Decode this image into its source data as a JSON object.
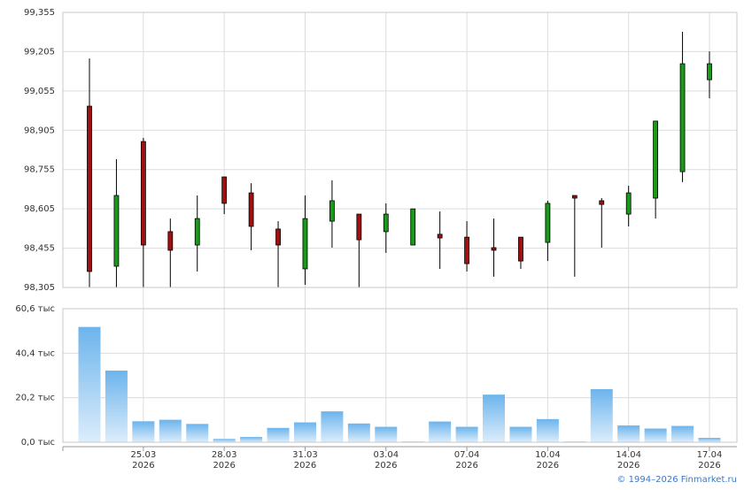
{
  "chart_data": [
    {
      "type": "candlestick",
      "up_color": "#1a9a1a",
      "down_color": "#a01010",
      "open": [
        98.997,
        98.386,
        98.862,
        98.518,
        98.467,
        98.727,
        98.666,
        98.528,
        98.376,
        98.558,
        98.585,
        98.518,
        98.467,
        98.508,
        98.497,
        98.457,
        98.497,
        98.477,
        98.656,
        98.636,
        98.585,
        98.646,
        98.747,
        99.098
      ],
      "high": [
        99.179,
        98.795,
        98.876,
        98.568,
        98.656,
        98.727,
        98.703,
        98.558,
        98.656,
        98.714,
        98.585,
        98.626,
        98.605,
        98.595,
        98.558,
        98.568,
        98.497,
        98.636,
        98.656,
        98.646,
        98.693,
        98.94,
        99.281,
        99.206
      ],
      "low": [
        98.305,
        98.305,
        98.305,
        98.305,
        98.366,
        98.585,
        98.447,
        98.305,
        98.315,
        98.457,
        98.305,
        98.437,
        98.467,
        98.376,
        98.366,
        98.346,
        98.376,
        98.406,
        98.346,
        98.457,
        98.538,
        98.568,
        98.707,
        99.027
      ],
      "close": [
        98.366,
        98.656,
        98.467,
        98.447,
        98.568,
        98.626,
        98.538,
        98.467,
        98.568,
        98.636,
        98.487,
        98.585,
        98.605,
        98.494,
        98.396,
        98.447,
        98.406,
        98.626,
        98.646,
        98.622,
        98.666,
        98.94,
        99.159,
        99.159
      ],
      "ylim": [
        98.305,
        99.355
      ],
      "yticks": [
        {
          "value": 98.305,
          "label": "98,305"
        },
        {
          "value": 98.455,
          "label": "98,455"
        },
        {
          "value": 98.605,
          "label": "98,605"
        },
        {
          "value": 98.755,
          "label": "98,755"
        },
        {
          "value": 98.905,
          "label": "98,905"
        },
        {
          "value": 99.055,
          "label": "99,055"
        },
        {
          "value": 99.205,
          "label": "99,205"
        },
        {
          "value": 99.355,
          "label": "99,355"
        }
      ],
      "grid": true
    },
    {
      "type": "bar",
      "color_top": "#6cb4ec",
      "color_bottom": "#dcedfb",
      "categories": [
        null,
        null,
        "25.03",
        null,
        null,
        "28.03",
        null,
        null,
        "31.03",
        null,
        null,
        "03.04",
        null,
        null,
        "07.04",
        null,
        null,
        "10.04",
        null,
        null,
        "14.04",
        null,
        null,
        "17.04"
      ],
      "category_sublabels": [
        null,
        null,
        "2026",
        null,
        null,
        "2026",
        null,
        null,
        "2026",
        null,
        null,
        "2026",
        null,
        null,
        "2026",
        null,
        null,
        "2026",
        null,
        null,
        "2026",
        null,
        null,
        "2026"
      ],
      "values": [
        52.3,
        32.5,
        9.5,
        10.2,
        8.3,
        1.5,
        2.4,
        6.5,
        9.0,
        14.0,
        8.5,
        7.0,
        0.3,
        9.4,
        7.0,
        21.6,
        7.0,
        10.5,
        0.3,
        24.1,
        7.6,
        6.2,
        7.4,
        2.0
      ],
      "ylim": [
        0,
        60.6
      ],
      "yticks": [
        {
          "value": 0,
          "label": "0,0 тыс"
        },
        {
          "value": 20.2,
          "label": "20,2 тыс"
        },
        {
          "value": 40.4,
          "label": "40,4 тыс"
        },
        {
          "value": 60.6,
          "label": "60,6 тыс"
        }
      ],
      "grid": true
    }
  ],
  "footer": "© 1994–2026 Finmarket.ru"
}
